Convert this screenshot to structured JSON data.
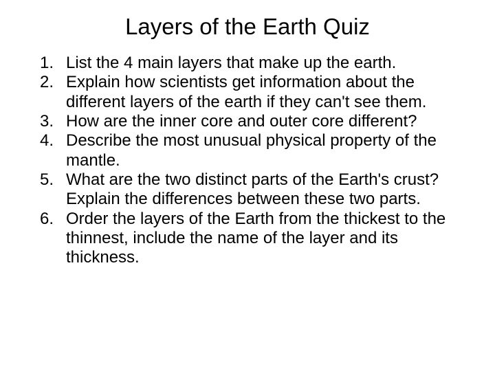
{
  "title": "Layers of the Earth Quiz",
  "title_fontsize": 33,
  "body_fontsize": 24,
  "text_color": "#000000",
  "background_color": "#ffffff",
  "items": [
    {
      "num": "1.",
      "text": "List the 4 main layers that make up the earth."
    },
    {
      "num": "2.",
      "text": "Explain how scientists get information about the different layers of the earth if they can't see them."
    },
    {
      "num": "3.",
      "text": "How are the inner core and outer core different?"
    },
    {
      "num": "4.",
      "text": "Describe the most unusual physical property of the mantle."
    },
    {
      "num": "5.",
      "text": "What are the two distinct parts of the Earth's crust?  Explain the differences between these two parts."
    },
    {
      "num": "6.",
      "text": "Order the layers of the Earth from the thickest to the thinnest, include the name of the layer and its thickness."
    }
  ]
}
